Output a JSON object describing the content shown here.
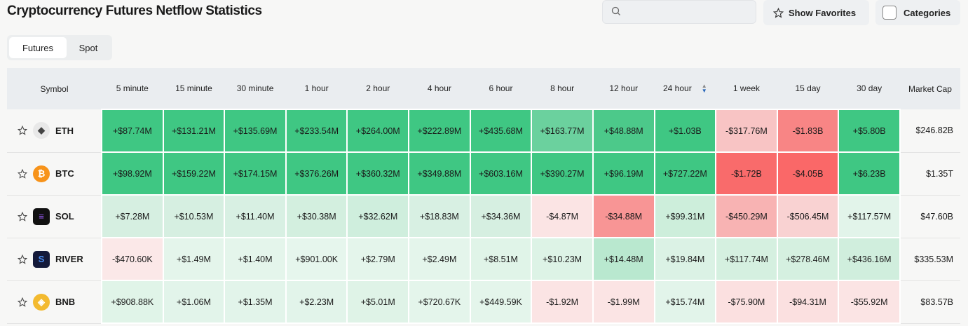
{
  "title": "Cryptocurrency Futures Netflow Statistics",
  "search": {
    "placeholder": "",
    "value": ""
  },
  "show_favorites": "Show Favorites",
  "categories": "Categories",
  "tabs": [
    {
      "label": "Futures",
      "active": true
    },
    {
      "label": "Spot",
      "active": false
    }
  ],
  "columns": [
    "Symbol",
    "5 minute",
    "15 minute",
    "30 minute",
    "1 hour",
    "2 hour",
    "4 hour",
    "6 hour",
    "8 hour",
    "12 hour",
    "24 hour",
    "1 week",
    "15 day",
    "30 day",
    "Market Cap"
  ],
  "sorted_column": "24 hour",
  "rows": [
    {
      "symbol": "ETH",
      "icon": "ethereum-icon",
      "icon_color": "#e8e8e8",
      "market_cap": "$246.82B",
      "values": [
        "+$87.74M",
        "+$131.21M",
        "+$135.69M",
        "+$233.54M",
        "+$264.00M",
        "+$222.89M",
        "+$435.68M",
        "+$163.77M",
        "+$48.88M",
        "+$1.03B",
        "-$317.76M",
        "-$1.83B",
        "+$5.80B"
      ],
      "colors": [
        "#3fc783",
        "#3fc783",
        "#3fc783",
        "#3fc783",
        "#3fc783",
        "#3fc783",
        "#3fc783",
        "#6bd19e",
        "#4cc98a",
        "#3fc783",
        "#f8c4c4",
        "#f88585",
        "#3fc783"
      ]
    },
    {
      "symbol": "BTC",
      "icon": "bitcoin-icon",
      "icon_color": "#f7931a",
      "market_cap": "$1.35T",
      "values": [
        "+$98.92M",
        "+$159.22M",
        "+$174.15M",
        "+$376.26M",
        "+$360.32M",
        "+$349.88M",
        "+$603.16M",
        "+$390.27M",
        "+$96.19M",
        "+$727.22M",
        "-$1.72B",
        "-$4.05B",
        "+$6.23B"
      ],
      "colors": [
        "#3fc783",
        "#3fc783",
        "#3fc783",
        "#3fc783",
        "#3fc783",
        "#3fc783",
        "#3fc783",
        "#3fc783",
        "#3fc783",
        "#3fc783",
        "#f96b6b",
        "#fa6868",
        "#3fc783"
      ]
    },
    {
      "symbol": "SOL",
      "icon": "solana-icon",
      "icon_color": "#111111",
      "market_cap": "$47.60B",
      "values": [
        "+$7.28M",
        "+$10.53M",
        "+$11.40M",
        "+$30.38M",
        "+$32.62M",
        "+$18.83M",
        "+$34.36M",
        "-$4.87M",
        "-$34.88M",
        "+$99.31M",
        "-$450.29M",
        "-$506.45M",
        "+$117.57M"
      ],
      "colors": [
        "#d6efe1",
        "#d6efe1",
        "#d8f0e3",
        "#d3efdf",
        "#cfeedd",
        "#d8f0e3",
        "#d6efe1",
        "#fbe4e4",
        "#f89595",
        "#cdeedb",
        "#f8b3b3",
        "#f9d2d2",
        "#e2f4ea"
      ]
    },
    {
      "symbol": "RIVER",
      "icon": "river-icon",
      "icon_color": "#141a3a",
      "market_cap": "$335.53M",
      "values": [
        "-$470.60K",
        "+$1.49M",
        "+$1.40M",
        "+$901.00K",
        "+$2.79M",
        "+$2.49M",
        "+$8.51M",
        "+$10.23M",
        "+$14.48M",
        "+$19.84M",
        "+$117.74M",
        "+$278.46M",
        "+$436.16M"
      ],
      "colors": [
        "#fbe8e8",
        "#e4f5eb",
        "#e4f5eb",
        "#e6f6ed",
        "#e4f5eb",
        "#e4f5eb",
        "#e0f4e8",
        "#ddf3e6",
        "#b9e8cf",
        "#dbf2e5",
        "#d5f0e0",
        "#d5f0e0",
        "#d0eedd"
      ]
    },
    {
      "symbol": "BNB",
      "icon": "bnb-icon",
      "icon_color": "#f3ba2f",
      "market_cap": "$83.57B",
      "values": [
        "+$908.88K",
        "+$1.06M",
        "+$1.35M",
        "+$2.23M",
        "+$5.01M",
        "+$720.67K",
        "+$449.59K",
        "-$1.92M",
        "-$1.99M",
        "+$15.74M",
        "-$75.90M",
        "-$94.31M",
        "-$55.92M"
      ],
      "colors": [
        "#e0f4e8",
        "#e2f4ea",
        "#e2f4ea",
        "#e2f4ea",
        "#dff3e7",
        "#e4f5eb",
        "#e4f5eb",
        "#fbe4e4",
        "#fbe4e4",
        "#e2f4ea",
        "#fbe0e0",
        "#fbe0e0",
        "#fbe4e4"
      ]
    }
  ]
}
